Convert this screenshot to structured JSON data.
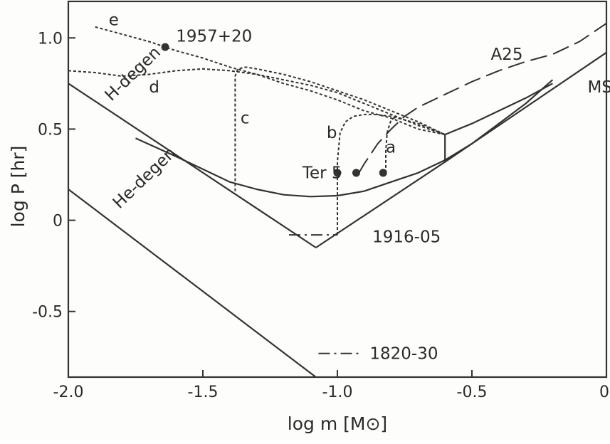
{
  "chart_data": {
    "type": "line",
    "xlabel": "log m [M⊙]",
    "ylabel": "log P [hr]",
    "xlim": [
      -2.0,
      0.0
    ],
    "ylim": [
      -0.86,
      1.2
    ],
    "grid": false,
    "x_ticks": [
      {
        "value": -2.0,
        "label": "-2.0"
      },
      {
        "value": -1.5,
        "label": "-1.5"
      },
      {
        "value": -1.0,
        "label": "-1.0"
      },
      {
        "value": -0.5,
        "label": "-0.5"
      },
      {
        "value": 0.0,
        "label": "0"
      }
    ],
    "y_ticks": [
      {
        "value": 1.0,
        "label": "1.0"
      },
      {
        "value": 0.5,
        "label": "0.5"
      },
      {
        "value": 0.0,
        "label": "0"
      },
      {
        "value": -0.5,
        "label": "-0.5"
      }
    ],
    "series": [
      {
        "name": "H-degen",
        "style": "solid",
        "x": [
          -2.0,
          -1.08
        ],
        "y": [
          0.75,
          -0.15
        ]
      },
      {
        "name": "He-degen",
        "style": "solid",
        "x": [
          -2.0,
          -1.08
        ],
        "y": [
          0.17,
          -0.86
        ]
      },
      {
        "name": "MS",
        "style": "solid",
        "x": [
          -1.08,
          -0.6,
          0.0
        ],
        "y": [
          -0.15,
          0.32,
          0.92
        ]
      },
      {
        "name": "",
        "style": "solid",
        "x": [
          -1.75,
          -1.6,
          -1.5,
          -1.4,
          -1.3,
          -1.2,
          -1.1,
          -1.0,
          -0.9,
          -0.8,
          -0.7,
          -0.6,
          -0.5,
          -0.4,
          -0.3,
          -0.2
        ],
        "y": [
          0.45,
          0.35,
          0.28,
          0.21,
          0.17,
          0.14,
          0.13,
          0.135,
          0.16,
          0.21,
          0.26,
          0.33,
          0.42,
          0.53,
          0.64,
          0.77
        ]
      },
      {
        "name": "",
        "style": "solid",
        "x": [
          -0.6,
          -0.6,
          -0.5,
          -0.4,
          -0.3,
          -0.2
        ],
        "y": [
          0.32,
          0.47,
          0.53,
          0.6,
          0.67,
          0.75
        ]
      },
      {
        "name": "a",
        "style": "dotted",
        "x": [
          -0.82,
          -0.82,
          -0.815,
          -0.805,
          -0.8,
          -0.78
        ],
        "y": [
          0.26,
          0.38,
          0.48,
          0.53,
          0.55,
          0.57
        ]
      },
      {
        "name": "b",
        "style": "dotted",
        "x": [
          -1.0,
          -1.0,
          -0.99,
          -0.97,
          -0.94,
          -0.9,
          -0.86,
          -0.8,
          -0.7,
          -0.6
        ],
        "y": [
          -0.08,
          0.32,
          0.48,
          0.54,
          0.57,
          0.58,
          0.58,
          0.57,
          0.53,
          0.47
        ]
      },
      {
        "name": "c",
        "style": "dotted",
        "x": [
          -1.38,
          -1.38,
          -1.37,
          -1.34,
          -1.3,
          -1.2,
          -1.1,
          -1.0,
          -0.9,
          -0.8,
          -0.7,
          -0.6
        ],
        "y": [
          0.16,
          0.79,
          0.83,
          0.84,
          0.83,
          0.8,
          0.76,
          0.71,
          0.66,
          0.6,
          0.54,
          0.47
        ]
      },
      {
        "name": "d",
        "style": "dotted",
        "x": [
          -2.0,
          -1.9,
          -1.8,
          -1.7,
          -1.6,
          -1.5,
          -1.4,
          -1.3,
          -1.2,
          -1.1,
          -1.0,
          -0.9,
          -0.8,
          -0.7,
          -0.6
        ],
        "y": [
          0.82,
          0.81,
          0.79,
          0.8,
          0.82,
          0.83,
          0.82,
          0.8,
          0.77,
          0.74,
          0.7,
          0.64,
          0.58,
          0.52,
          0.47
        ]
      },
      {
        "name": "e",
        "style": "dotted",
        "x": [
          -1.9,
          -1.8,
          -1.7,
          -1.6,
          -1.5,
          -1.4,
          -1.3,
          -1.2,
          -1.1,
          -1.0,
          -0.9,
          -0.8,
          -0.7,
          -0.6
        ],
        "y": [
          1.06,
          1.02,
          0.98,
          0.93,
          0.89,
          0.84,
          0.8,
          0.75,
          0.71,
          0.66,
          0.6,
          0.56,
          0.5,
          0.47
        ]
      },
      {
        "name": "A25",
        "style": "long-dash",
        "x": [
          -0.92,
          -0.9,
          -0.85,
          -0.8,
          -0.75,
          -0.7,
          -0.6,
          -0.5,
          -0.4,
          -0.3,
          -0.2,
          -0.1,
          0.0
        ],
        "y": [
          0.26,
          0.31,
          0.42,
          0.5,
          0.57,
          0.62,
          0.69,
          0.76,
          0.82,
          0.87,
          0.91,
          0.98,
          1.08
        ]
      },
      {
        "name": "1916-05",
        "style": "dash-dot",
        "x": [
          -1.18,
          -1.0
        ],
        "y": [
          -0.08,
          -0.08
        ]
      },
      {
        "name": "1820-30",
        "style": "dash-dot",
        "x": [
          -1.07,
          -0.92
        ],
        "y": [
          -0.73,
          -0.73
        ]
      }
    ],
    "points": [
      {
        "label": "1957+20",
        "x": -1.64,
        "y": 0.95
      },
      {
        "label": "Ter 5",
        "x": -1.0,
        "y": 0.26
      },
      {
        "label": "",
        "x": -0.93,
        "y": 0.26
      },
      {
        "label": "",
        "x": -0.83,
        "y": 0.26
      }
    ],
    "annotations": [
      {
        "text": "H-degen",
        "x": -1.84,
        "y": 0.65,
        "rotate": -44
      },
      {
        "text": "He-degen",
        "x": -1.81,
        "y": 0.06,
        "rotate": -44
      },
      {
        "text": "MS",
        "x": -0.07,
        "y": 0.7
      },
      {
        "text": "A25",
        "x": -0.43,
        "y": 0.88
      },
      {
        "text": "a",
        "x": -0.82,
        "y": 0.37
      },
      {
        "text": "b",
        "x": -1.04,
        "y": 0.45
      },
      {
        "text": "c",
        "x": -1.36,
        "y": 0.53
      },
      {
        "text": "d",
        "x": -1.7,
        "y": 0.7
      },
      {
        "text": "e",
        "x": -1.85,
        "y": 1.07
      },
      {
        "text": "1957+20",
        "x": -1.6,
        "y": 0.98
      },
      {
        "text": "Ter 5",
        "x": -1.13,
        "y": 0.23
      },
      {
        "text": "1916-05",
        "x": -0.87,
        "y": -0.12
      },
      {
        "text": "1820-30",
        "x": -0.88,
        "y": -0.76
      }
    ]
  }
}
